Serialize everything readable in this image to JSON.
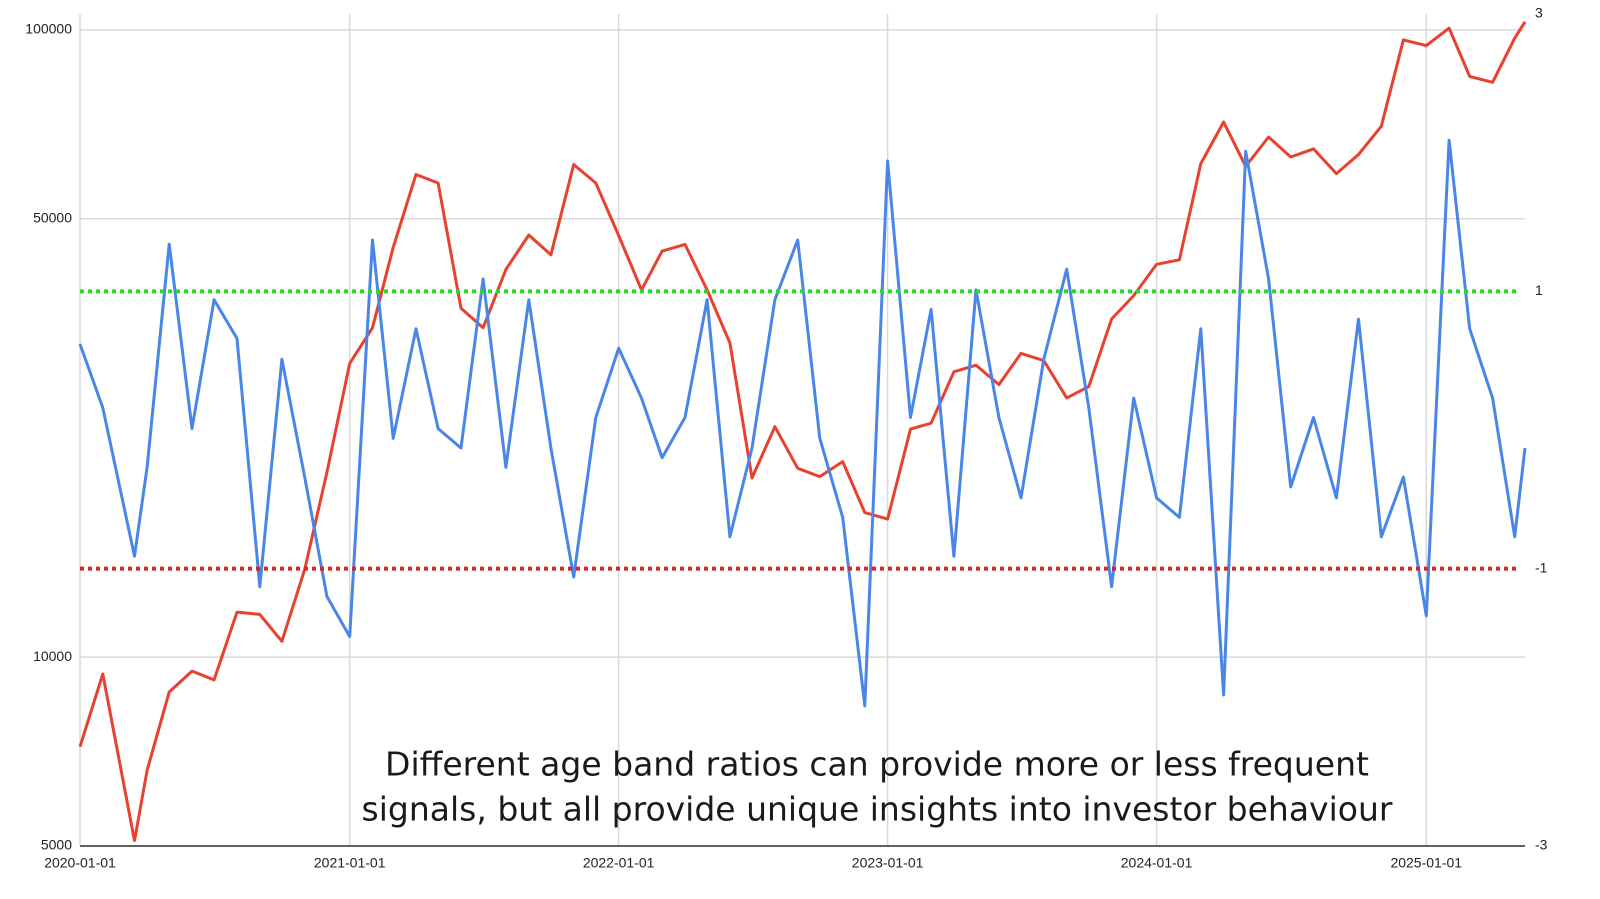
{
  "chart_data": {
    "type": "line",
    "annotation": [
      "Different age band ratios can provide more or less frequent",
      "signals, but all provide unique insights into investor behaviour"
    ],
    "x": [
      "2020-01-01",
      "2020-02-01",
      "2020-03-15",
      "2020-04-01",
      "2020-05-01",
      "2020-06-01",
      "2020-07-01",
      "2020-08-01",
      "2020-09-01",
      "2020-10-01",
      "2020-11-01",
      "2020-12-01",
      "2021-01-01",
      "2021-02-01",
      "2021-03-01",
      "2021-04-01",
      "2021-05-01",
      "2021-06-01",
      "2021-07-01",
      "2021-08-01",
      "2021-09-01",
      "2021-10-01",
      "2021-11-01",
      "2021-12-01",
      "2022-01-01",
      "2022-02-01",
      "2022-03-01",
      "2022-04-01",
      "2022-05-01",
      "2022-06-01",
      "2022-07-01",
      "2022-08-01",
      "2022-09-01",
      "2022-10-01",
      "2022-11-01",
      "2022-12-01",
      "2023-01-01",
      "2023-02-01",
      "2023-03-01",
      "2023-04-01",
      "2023-05-01",
      "2023-06-01",
      "2023-07-01",
      "2023-08-01",
      "2023-09-01",
      "2023-10-01",
      "2023-11-01",
      "2023-12-01",
      "2024-01-01",
      "2024-02-01",
      "2024-03-01",
      "2024-04-01",
      "2024-05-01",
      "2024-06-01",
      "2024-07-01",
      "2024-08-01",
      "2024-09-01",
      "2024-10-01",
      "2024-11-01",
      "2024-12-01",
      "2025-01-01",
      "2025-02-01",
      "2025-03-01",
      "2025-04-01",
      "2025-05-01",
      "2025-05-15"
    ],
    "xlim": [
      "2020-01-01",
      "2025-05-15"
    ],
    "xticks": [
      "2020-01-01",
      "2021-01-01",
      "2022-01-01",
      "2023-01-01",
      "2024-01-01",
      "2025-01-01"
    ],
    "ylim": [
      5000,
      106000
    ],
    "ylog": true,
    "yticks": [
      5000,
      10000,
      50000,
      100000
    ],
    "y2lim": [
      -3,
      3
    ],
    "y2ticks": [
      -3,
      -1,
      1,
      3
    ],
    "grid": true,
    "series": [
      {
        "color": "#e8412f",
        "values": [
          7200,
          9400,
          5100,
          6600,
          8800,
          9500,
          9200,
          11800,
          11700,
          10600,
          13800,
          19700,
          29400,
          33500,
          45000,
          58800,
          57000,
          36000,
          33500,
          41500,
          47100,
          43800,
          61000,
          57000,
          47000,
          38500,
          44400,
          45500,
          38500,
          31700,
          19300,
          23300,
          20000,
          19400,
          20500,
          17000,
          16600,
          23100,
          23600,
          28500,
          29200,
          27200,
          30500,
          29700,
          25900,
          27000,
          34600,
          37700,
          42300,
          43000,
          61200,
          71300,
          60600,
          67500,
          62700,
          64600,
          59000,
          63300,
          70200,
          96400,
          94400,
          100600,
          84300,
          82500,
          97000,
          103000
        ]
      },
      {
        "color": "#4a86e8",
        "axis": "y2",
        "values": [
          0.62,
          0.16,
          -0.91,
          -0.27,
          1.34,
          0.01,
          0.94,
          0.66,
          -1.13,
          0.51,
          -0.34,
          -1.2,
          -1.49,
          1.37,
          -0.06,
          0.73,
          0.01,
          -0.13,
          1.09,
          -0.27,
          0.94,
          -0.13,
          -1.06,
          0.09,
          0.59,
          0.23,
          -0.2,
          0.09,
          0.94,
          -0.77,
          -0.13,
          0.94,
          1.37,
          -0.06,
          -0.63,
          -1.99,
          1.94,
          0.09,
          0.87,
          -0.91,
          1.01,
          0.09,
          -0.49,
          0.51,
          1.16,
          0.16,
          -1.13,
          0.23,
          -0.49,
          -0.63,
          0.73,
          -1.91,
          2.01,
          1.09,
          -0.41,
          0.09,
          -0.49,
          0.8,
          -0.77,
          -0.34,
          -1.34,
          2.09,
          0.73,
          0.23,
          -0.77,
          -0.13
        ]
      }
    ],
    "reference_lines": [
      {
        "value": 1,
        "color": "#22dd22"
      },
      {
        "value": -1,
        "color": "#dd2222"
      }
    ]
  }
}
